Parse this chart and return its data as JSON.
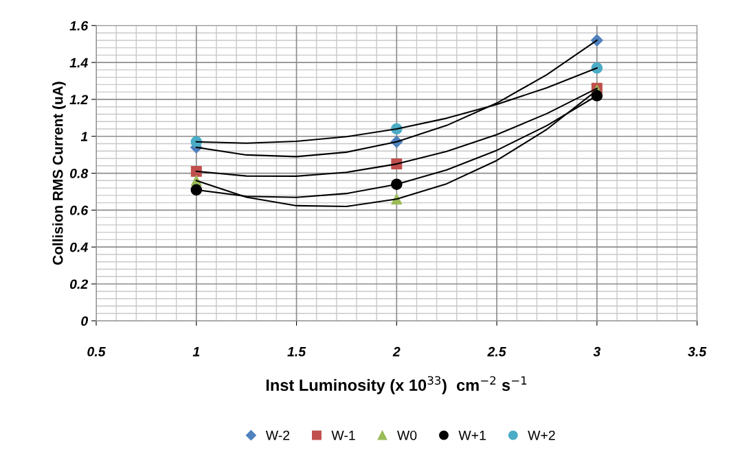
{
  "chart_data": {
    "type": "scatter",
    "xlabel": "Inst Luminosity (x 10$^{33}$)  cm$^{−2}$ s$^{−1}$",
    "ylabel": "Collision RMS Current (uA)",
    "xlim": [
      0.5,
      3.5
    ],
    "xticks": [
      0.5,
      1,
      1.5,
      2,
      2.5,
      3,
      3.5
    ],
    "ylim": [
      0,
      1.6
    ],
    "yticks": [
      0,
      0.2,
      0.4,
      0.6,
      0.8,
      1,
      1.2,
      1.4,
      1.6
    ],
    "grid": true,
    "legend": "bottom",
    "x": [
      1,
      2,
      3
    ],
    "series": [
      {
        "name": "W-2",
        "color": "#4f81bd",
        "marker": "diamond",
        "values": [
          0.94,
          0.97,
          1.52
        ]
      },
      {
        "name": "W-1",
        "color": "#c0504d",
        "marker": "square",
        "values": [
          0.81,
          0.85,
          1.26
        ]
      },
      {
        "name": "W0",
        "color": "#9bbb59",
        "marker": "triangle",
        "values": [
          0.76,
          0.66,
          1.25
        ]
      },
      {
        "name": "W+1",
        "color": "#000000",
        "marker": "circle",
        "values": [
          0.71,
          0.74,
          1.22
        ]
      },
      {
        "name": "W+2",
        "color": "#4bacc6",
        "marker": "circle",
        "values": [
          0.97,
          1.04,
          1.37
        ]
      },
      {
        "type": "line",
        "color": "#000000",
        "marker": "none",
        "x": [
          1,
          1.25,
          1.5,
          1.75,
          2,
          2.25,
          2.5,
          2.75,
          3
        ],
        "values": [
          0.94,
          0.899,
          0.89,
          0.914,
          0.97,
          1.059,
          1.18,
          1.334,
          1.52
        ]
      },
      {
        "type": "line",
        "color": "#000000",
        "marker": "none",
        "x": [
          1,
          1.25,
          1.5,
          1.75,
          2,
          2.25,
          2.5,
          2.75,
          3
        ],
        "values": [
          0.81,
          0.785,
          0.784,
          0.805,
          0.85,
          0.918,
          1.009,
          1.123,
          1.26
        ]
      },
      {
        "type": "line",
        "color": "#000000",
        "marker": "none",
        "x": [
          1,
          1.25,
          1.5,
          1.75,
          2,
          2.25,
          2.5,
          2.75,
          3
        ],
        "values": [
          0.76,
          0.67,
          0.624,
          0.62,
          0.66,
          0.743,
          0.869,
          1.038,
          1.25
        ]
      },
      {
        "type": "line",
        "color": "#000000",
        "marker": "none",
        "x": [
          1,
          1.25,
          1.5,
          1.75,
          2,
          2.25,
          2.5,
          2.75,
          3
        ],
        "values": [
          0.71,
          0.675,
          0.669,
          0.69,
          0.74,
          0.818,
          0.924,
          1.058,
          1.22
        ]
      },
      {
        "type": "line",
        "color": "#000000",
        "marker": "none",
        "x": [
          1,
          1.25,
          1.5,
          1.75,
          2,
          2.25,
          2.5,
          2.75,
          3
        ],
        "values": [
          0.97,
          0.963,
          0.973,
          0.998,
          1.04,
          1.098,
          1.173,
          1.263,
          1.37
        ]
      }
    ]
  }
}
